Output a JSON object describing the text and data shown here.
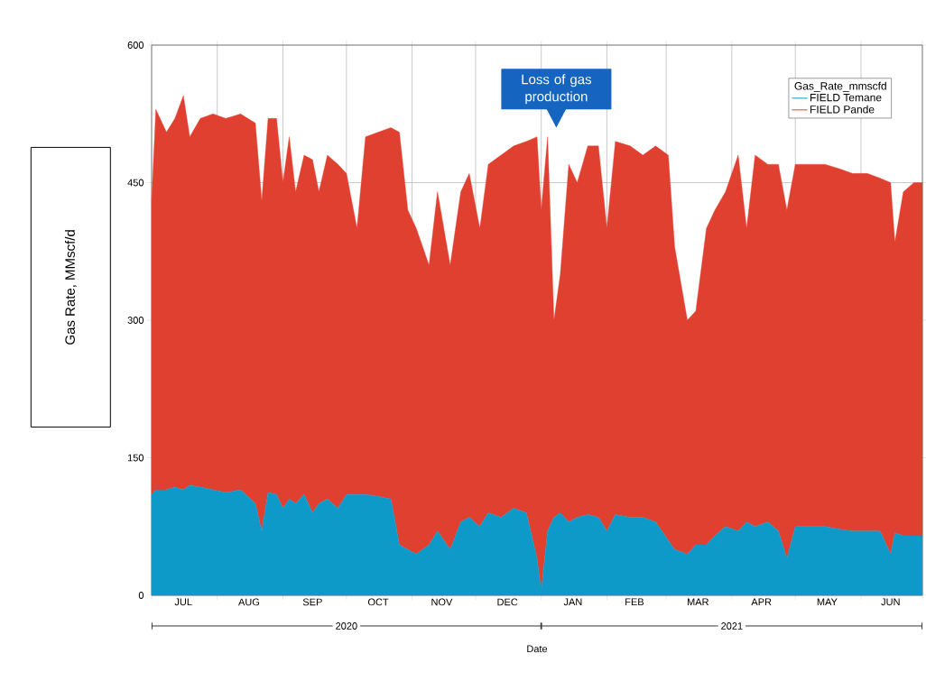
{
  "chart_data": {
    "type": "area",
    "stacked": true,
    "ylabel": "Gas Rate, MMscf/d",
    "xlabel": "Date",
    "legend_title": "Gas_Rate_mmscfd",
    "legend": "top right",
    "grid": true,
    "xlim": [
      "2020-07-01",
      "2021-06-30"
    ],
    "ylim": [
      0,
      600
    ],
    "yticks": [
      0,
      150,
      300,
      450,
      600
    ],
    "xticks": [
      {
        "value": "2020-07-01",
        "label": null
      },
      {
        "value": "2020-08-01",
        "label": null
      },
      {
        "value": "2020-09-01",
        "label": null
      },
      {
        "value": "2020-10-01",
        "label": null
      },
      {
        "value": "2020-11-01",
        "label": null
      },
      {
        "value": "2020-12-01",
        "label": null
      },
      {
        "value": "2021-01-01",
        "label": null
      },
      {
        "value": "2021-02-01",
        "label": null
      },
      {
        "value": "2021-03-01",
        "label": null
      },
      {
        "value": "2021-04-01",
        "label": null
      },
      {
        "value": "2021-05-01",
        "label": null
      },
      {
        "value": "2021-06-01",
        "label": null
      },
      {
        "value": "2021-06-30",
        "label": null
      },
      {
        "value": "2020-07-16",
        "label": "JUL"
      },
      {
        "value": "2020-08-16",
        "label": "AUG"
      },
      {
        "value": "2020-09-15",
        "label": "SEP"
      },
      {
        "value": "2020-10-16",
        "label": "OCT"
      },
      {
        "value": "2020-11-15",
        "label": "NOV"
      },
      {
        "value": "2020-12-16",
        "label": "DEC"
      },
      {
        "value": "2021-01-16",
        "label": "JAN"
      },
      {
        "value": "2021-02-14",
        "label": "FEB"
      },
      {
        "value": "2021-03-16",
        "label": "MAR"
      },
      {
        "value": "2021-04-15",
        "label": "APR"
      },
      {
        "value": "2021-05-16",
        "label": "MAY"
      },
      {
        "value": "2021-06-15",
        "label": "JUN"
      }
    ],
    "annotations": [
      "Loss of gas production",
      "2020",
      "2021"
    ],
    "x": [
      "2020-07-01",
      "2020-07-03",
      "2020-07-08",
      "2020-07-12",
      "2020-07-16",
      "2020-07-19",
      "2020-07-24",
      "2020-07-30",
      "2020-08-05",
      "2020-08-12",
      "2020-08-19",
      "2020-08-22",
      "2020-08-25",
      "2020-08-29",
      "2020-09-01",
      "2020-09-04",
      "2020-09-07",
      "2020-09-11",
      "2020-09-15",
      "2020-09-18",
      "2020-09-22",
      "2020-09-27",
      "2020-10-01",
      "2020-10-06",
      "2020-10-10",
      "2020-10-16",
      "2020-10-22",
      "2020-10-26",
      "2020-10-30",
      "2020-11-03",
      "2020-11-09",
      "2020-11-13",
      "2020-11-19",
      "2020-11-24",
      "2020-11-28",
      "2020-12-03",
      "2020-12-07",
      "2020-12-13",
      "2020-12-19",
      "2020-12-25",
      "2020-12-30",
      "2021-01-01",
      "2021-01-04",
      "2021-01-07",
      "2021-01-10",
      "2021-01-14",
      "2021-01-18",
      "2021-01-23",
      "2021-01-28",
      "2021-02-01",
      "2021-02-05",
      "2021-02-12",
      "2021-02-18",
      "2021-02-24",
      "2021-03-02",
      "2021-03-05",
      "2021-03-11",
      "2021-03-15",
      "2021-03-20",
      "2021-03-24",
      "2021-03-29",
      "2021-04-04",
      "2021-04-08",
      "2021-04-12",
      "2021-04-18",
      "2021-04-23",
      "2021-04-27",
      "2021-05-01",
      "2021-05-08",
      "2021-05-15",
      "2021-05-22",
      "2021-05-28",
      "2021-06-04",
      "2021-06-10",
      "2021-06-15",
      "2021-06-17",
      "2021-06-21",
      "2021-06-26",
      "2021-06-30"
    ],
    "series": [
      {
        "name": "FIELD Temane",
        "color": "#0e9ac8",
        "values": [
          110,
          115,
          115,
          118,
          115,
          120,
          118,
          115,
          112,
          115,
          100,
          70,
          112,
          110,
          95,
          105,
          100,
          110,
          90,
          100,
          105,
          95,
          110,
          110,
          110,
          108,
          105,
          55,
          50,
          45,
          55,
          70,
          50,
          80,
          85,
          75,
          90,
          85,
          95,
          90,
          40,
          5,
          70,
          85,
          90,
          80,
          85,
          88,
          85,
          70,
          88,
          85,
          85,
          80,
          60,
          50,
          45,
          55,
          55,
          65,
          75,
          70,
          80,
          75,
          80,
          70,
          40,
          75,
          75,
          75,
          72,
          70,
          70,
          70,
          45,
          68,
          65,
          65,
          65
        ]
      },
      {
        "name": "FIELD Pande",
        "color": "#e04030",
        "values": [
          320,
          415,
          390,
          402,
          430,
          380,
          402,
          410,
          408,
          410,
          415,
          360,
          408,
          410,
          355,
          395,
          340,
          370,
          385,
          340,
          375,
          375,
          350,
          290,
          390,
          397,
          405,
          450,
          370,
          355,
          305,
          370,
          310,
          360,
          375,
          325,
          380,
          395,
          395,
          405,
          460,
          415,
          430,
          215,
          260,
          390,
          365,
          402,
          405,
          330,
          407,
          405,
          395,
          410,
          420,
          330,
          255,
          255,
          345,
          355,
          365,
          410,
          320,
          405,
          390,
          400,
          380,
          395,
          395,
          395,
          393,
          390,
          390,
          385,
          405,
          317,
          375,
          385,
          385
        ]
      }
    ]
  }
}
